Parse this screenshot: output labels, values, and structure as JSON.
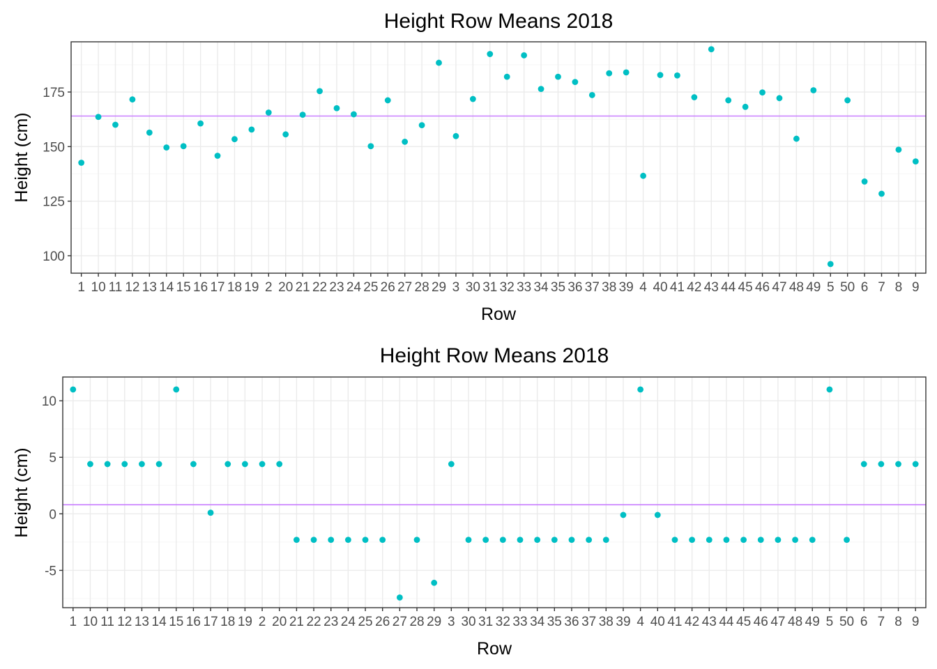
{
  "chart_data": [
    {
      "type": "scatter",
      "title": "Height Row Means 2018",
      "xlabel": "Row",
      "ylabel": "Height (cm)",
      "ylim": [
        92,
        198
      ],
      "yticks": [
        100,
        125,
        150,
        175
      ],
      "ytick_labels": [
        "100",
        "125",
        "150",
        "175"
      ],
      "grid": true,
      "point_color": "#00bfc4",
      "hline": {
        "value": 164,
        "color": "#c77cff"
      },
      "categories": [
        "1",
        "10",
        "11",
        "12",
        "13",
        "14",
        "15",
        "16",
        "17",
        "18",
        "19",
        "2",
        "20",
        "21",
        "22",
        "23",
        "24",
        "25",
        "26",
        "27",
        "28",
        "29",
        "3",
        "30",
        "31",
        "32",
        "33",
        "34",
        "35",
        "36",
        "37",
        "38",
        "39",
        "4",
        "40",
        "41",
        "42",
        "43",
        "44",
        "45",
        "46",
        "47",
        "48",
        "49",
        "5",
        "50",
        "6",
        "7",
        "8",
        "9"
      ],
      "values": [
        142.6,
        163.6,
        160,
        171.6,
        156.4,
        149.6,
        150.2,
        160.6,
        145.8,
        153.4,
        157.8,
        165.6,
        155.6,
        164.6,
        175.4,
        167.6,
        164.8,
        150.2,
        171.2,
        152.2,
        159.8,
        188.4,
        154.8,
        171.8,
        192.4,
        182,
        191.8,
        176.4,
        182,
        179.6,
        173.6,
        183.6,
        184,
        136.6,
        182.8,
        182.6,
        172.6,
        194.6,
        171.2,
        168.2,
        174.8,
        172.2,
        153.6,
        175.8,
        96.2,
        171.2,
        134,
        128.4,
        148.6,
        143.2
      ]
    },
    {
      "type": "scatter",
      "title": "Height Row Means 2018",
      "xlabel": "Row",
      "ylabel": "Height (cm)",
      "ylim": [
        -8.3,
        12.1
      ],
      "yticks": [
        -5,
        0,
        5,
        10
      ],
      "ytick_labels": [
        "-5",
        "0",
        "5",
        "10"
      ],
      "grid": true,
      "point_color": "#00bfc4",
      "hline": {
        "value": 0.8,
        "color": "#c77cff"
      },
      "categories": [
        "1",
        "10",
        "11",
        "12",
        "13",
        "14",
        "15",
        "16",
        "17",
        "18",
        "19",
        "2",
        "20",
        "21",
        "22",
        "23",
        "24",
        "25",
        "26",
        "27",
        "28",
        "29",
        "3",
        "30",
        "31",
        "32",
        "33",
        "34",
        "35",
        "36",
        "37",
        "38",
        "39",
        "4",
        "40",
        "41",
        "42",
        "43",
        "44",
        "45",
        "46",
        "47",
        "48",
        "49",
        "5",
        "50",
        "6",
        "7",
        "8",
        "9"
      ],
      "values": [
        11,
        4.4,
        4.4,
        4.4,
        4.4,
        4.4,
        11,
        4.4,
        0.1,
        4.4,
        4.4,
        4.4,
        4.4,
        -2.3,
        -2.3,
        -2.3,
        -2.3,
        -2.3,
        -2.3,
        -7.4,
        -2.3,
        -6.1,
        4.4,
        -2.3,
        -2.3,
        -2.3,
        -2.3,
        -2.3,
        -2.3,
        -2.3,
        -2.3,
        -2.3,
        -0.1,
        11,
        -0.1,
        -2.3,
        -2.3,
        -2.3,
        -2.3,
        -2.3,
        -2.3,
        -2.3,
        -2.3,
        -2.3,
        11,
        -2.3,
        4.4,
        4.4,
        4.4,
        4.4
      ]
    }
  ]
}
